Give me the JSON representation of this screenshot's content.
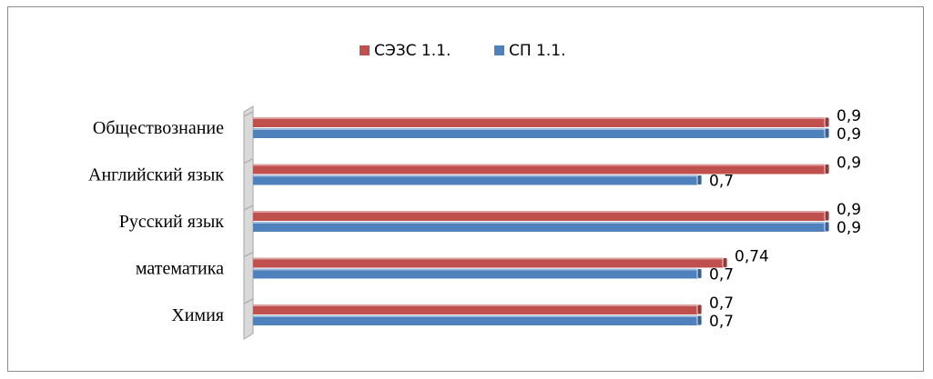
{
  "chart_data": {
    "type": "bar",
    "orientation": "horizontal",
    "categories": [
      "Обществознание",
      "Английский язык",
      "Русский язык",
      "математика",
      "Химия"
    ],
    "series": [
      {
        "name": "СЭЗС 1.1.",
        "color": "#c0504d",
        "values": [
          0.9,
          0.9,
          0.9,
          0.74,
          0.7
        ],
        "labels": [
          "0,9",
          "0,9",
          "0,9",
          "0,74",
          "0,7"
        ]
      },
      {
        "name": "СП 1.1.",
        "color": "#4f81bd",
        "values": [
          0.9,
          0.7,
          0.9,
          0.7,
          0.7
        ],
        "labels": [
          "0,9",
          "0,7",
          "0,9",
          "0,7",
          "0,7"
        ]
      }
    ],
    "legend_position": "top",
    "grid": false,
    "title": "",
    "xlabel": "",
    "ylabel": ""
  }
}
